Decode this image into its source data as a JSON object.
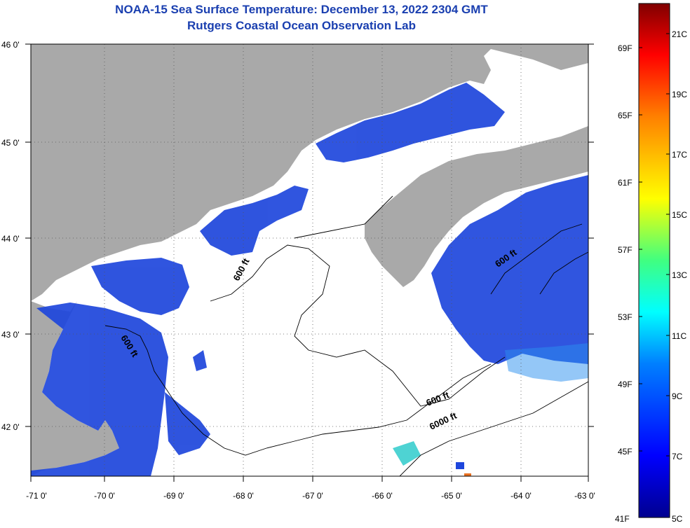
{
  "title": {
    "line1": "NOAA-15 Sea Surface Temperature:  December 13, 2022 2304 GMT",
    "line2": "Rutgers Coastal Ocean Observation Lab"
  },
  "axes": {
    "longitude_labels": [
      "-71 0'",
      "-70 0'",
      "-69 0'",
      "-68 0'",
      "-67 0'",
      "-66 0'",
      "-65 0'",
      "-64 0'",
      "-63 0'"
    ],
    "latitude_labels": [
      "46 0'",
      "45 0'",
      "44 0'",
      "43 0'",
      "42 0'"
    ]
  },
  "contour_labels": [
    "600 ft",
    "600 ft",
    "600 ft",
    "600 ft",
    "6000 ft"
  ],
  "colorbar": {
    "fahrenheit": [
      "69F",
      "65F",
      "61F",
      "57F",
      "53F",
      "49F",
      "45F",
      "41F"
    ],
    "celsius": [
      "21C",
      "19C",
      "17C",
      "15C",
      "13C",
      "11C",
      "9C",
      "7C",
      "5C"
    ]
  },
  "colors": {
    "land": "#a9a9a9",
    "ocean_cold": "#1e46dc",
    "title": "#1a3fb0"
  }
}
